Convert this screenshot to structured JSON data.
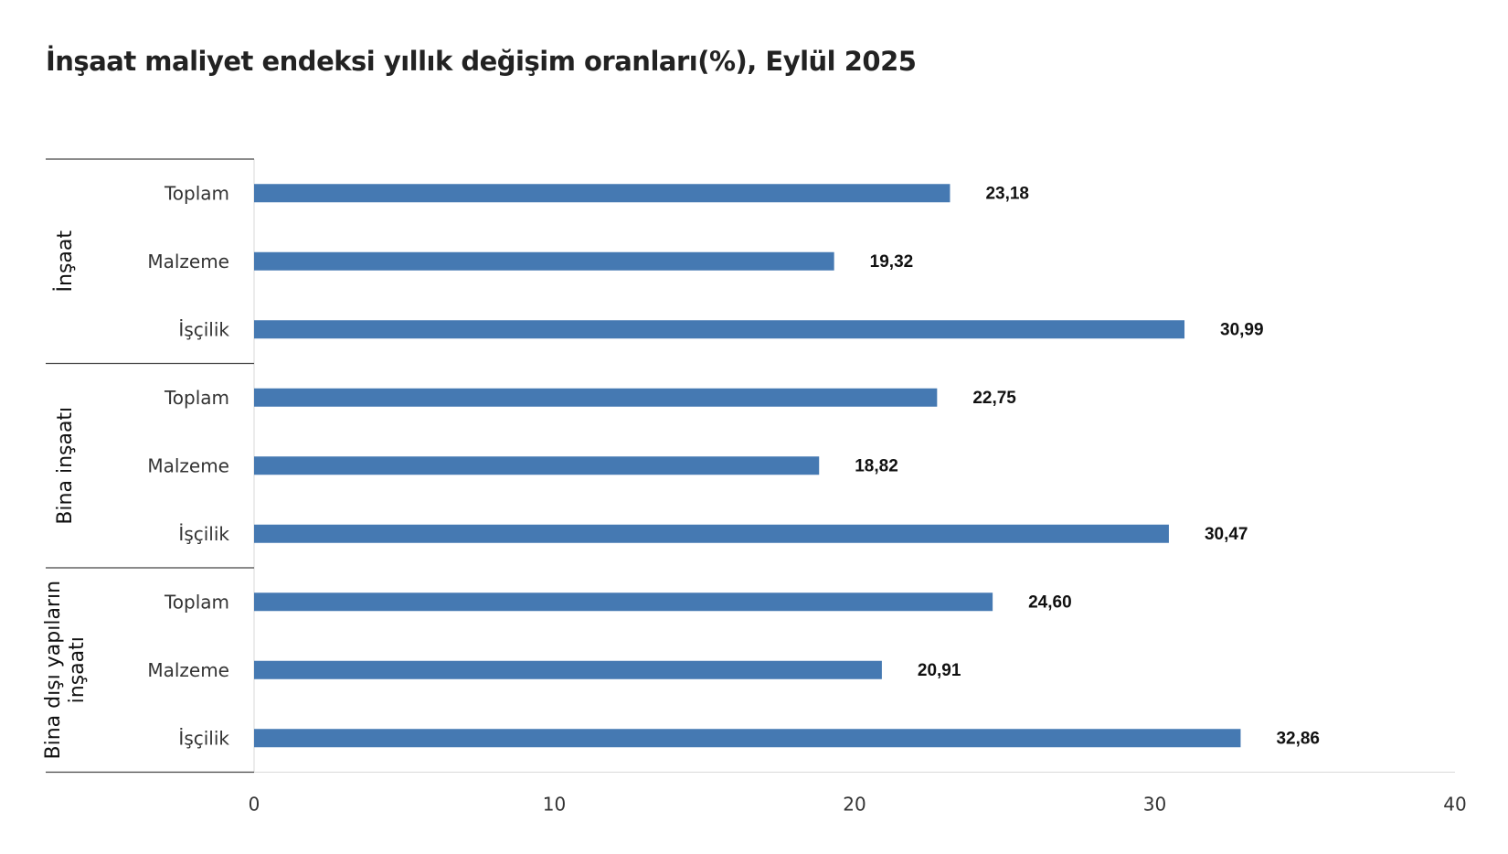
{
  "chart_data": {
    "type": "bar",
    "orientation": "horizontal",
    "title": "İnşaat maliyet endeksi yıllık değişim oranları(%), Eylül 2025",
    "xlim": [
      0,
      40
    ],
    "ticks": [
      0,
      10,
      20,
      30,
      40
    ],
    "tick_labels": [
      "0",
      "10",
      "20",
      "30",
      "40"
    ],
    "bar_color": "#4579B2",
    "grid": false,
    "groups": [
      {
        "label": "İnşaat",
        "label_lines": [
          "İnşaat"
        ],
        "items": [
          {
            "label": "Toplam",
            "value": 23.18,
            "value_label": "23,18"
          },
          {
            "label": "Malzeme",
            "value": 19.32,
            "value_label": "19,32"
          },
          {
            "label": "İşçilik",
            "value": 30.99,
            "value_label": "30,99"
          }
        ]
      },
      {
        "label": "Bina inşaatı",
        "label_lines": [
          "Bina inşaatı"
        ],
        "items": [
          {
            "label": "Toplam",
            "value": 22.75,
            "value_label": "22,75"
          },
          {
            "label": "Malzeme",
            "value": 18.82,
            "value_label": "18,82"
          },
          {
            "label": "İşçilik",
            "value": 30.47,
            "value_label": "30,47"
          }
        ]
      },
      {
        "label": "Bina dışı yapıların inşaatı",
        "label_lines": [
          "Bina dışı yapıların",
          "inşaatı"
        ],
        "items": [
          {
            "label": "Toplam",
            "value": 24.6,
            "value_label": "24,60"
          },
          {
            "label": "Malzeme",
            "value": 20.91,
            "value_label": "20,91"
          },
          {
            "label": "İşçilik",
            "value": 32.86,
            "value_label": "32,86"
          }
        ]
      }
    ]
  }
}
